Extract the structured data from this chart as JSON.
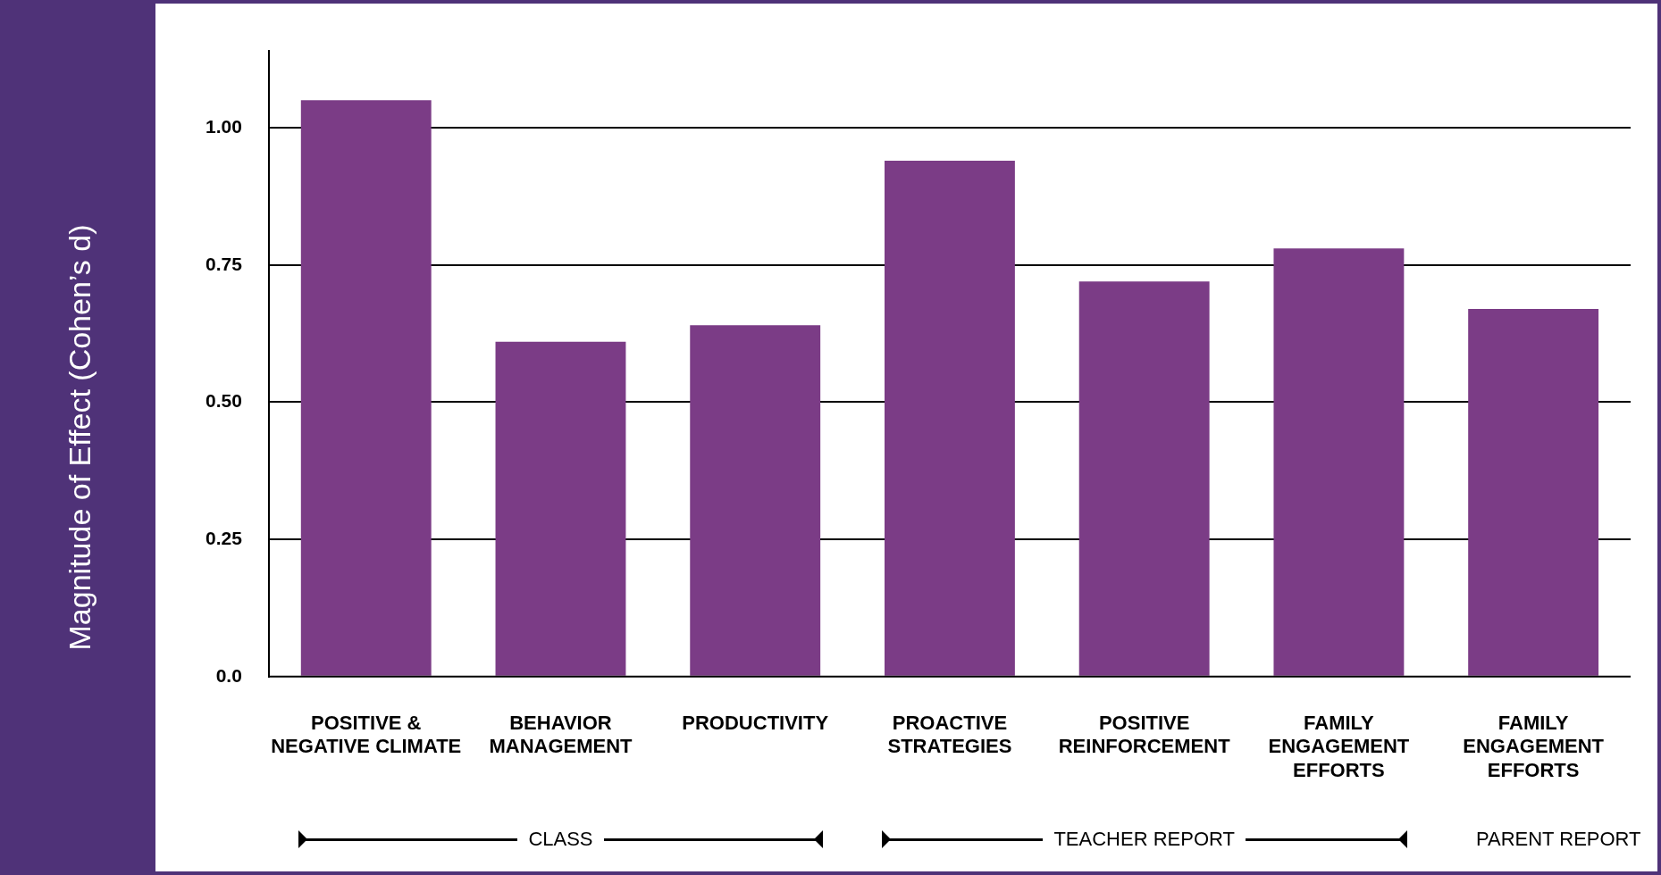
{
  "chart_data": {
    "type": "bar",
    "ylabel": "Magnitude of Effect (Cohen’s d)",
    "categories": [
      "POSITIVE & NEGATIVE CLIMATE",
      "BEHAVIOR MANAGEMENT",
      "PRODUCTIVITY",
      "PROACTIVE STRATEGIES",
      "POSITIVE REINFORCEMENT",
      "FAMILY ENGAGEMENT EFFORTS",
      "FAMILY ENGAGEMENT EFFORTS"
    ],
    "values": [
      1.05,
      0.61,
      0.64,
      0.94,
      0.72,
      0.78,
      0.67
    ],
    "color": "#7b3c86",
    "ylim": [
      0,
      1.14
    ],
    "yticks": [
      {
        "value": 0,
        "label": "0.0"
      },
      {
        "value": 0.25,
        "label": "0.25"
      },
      {
        "value": 0.5,
        "label": "0.50"
      },
      {
        "value": 0.75,
        "label": "0.75"
      },
      {
        "value": 1,
        "label": "1.00"
      }
    ],
    "grid": "y",
    "annotations": [
      "CLASS",
      "TEACHER REPORT",
      "PARENT REPORT"
    ]
  }
}
